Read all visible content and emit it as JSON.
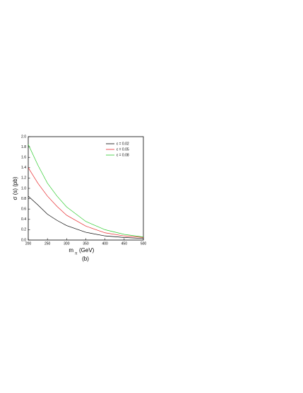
{
  "chart_data": {
    "type": "line",
    "y_label": "σ (s) (pb)",
    "x_label": "m",
    "x_label_sub": "π",
    "x_label_unit": "(GeV)",
    "caption": "(b)",
    "x": [
      200,
      225,
      250,
      275,
      300,
      350,
      400,
      450,
      500
    ],
    "series": [
      {
        "name": "ε = 0.02",
        "color": "#000000",
        "values": [
          0.85,
          0.68,
          0.5,
          0.38,
          0.28,
          0.15,
          0.08,
          0.05,
          0.03
        ]
      },
      {
        "name": "ε = 0.05",
        "color": "#e8262a",
        "values": [
          1.4,
          1.1,
          0.85,
          0.65,
          0.48,
          0.27,
          0.14,
          0.08,
          0.05
        ]
      },
      {
        "name": "ε = 0.08",
        "color": "#2ecc2e",
        "values": [
          1.85,
          1.45,
          1.1,
          0.85,
          0.64,
          0.36,
          0.2,
          0.11,
          0.06
        ]
      }
    ],
    "xlim": [
      200,
      500
    ],
    "xticks": [
      200,
      250,
      300,
      350,
      400,
      450,
      500
    ],
    "ylim": [
      0,
      2
    ],
    "yticks": [
      {
        "value": 0,
        "label": "0.0"
      },
      0.2,
      0.4,
      0.6,
      0.8,
      {
        "value": 1,
        "label": "1.0"
      },
      1.2,
      1.4,
      1.6,
      1.8,
      {
        "value": 2,
        "label": "2.0"
      }
    ],
    "legend": "upper right"
  }
}
